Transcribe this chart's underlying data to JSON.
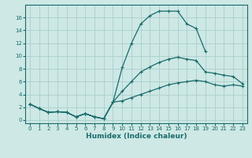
{
  "xlabel": "Humidex (Indice chaleur)",
  "background_color": "#cde8e5",
  "grid_color": "#aacfcc",
  "line_color": "#1a6b6b",
  "x_values": [
    0,
    1,
    2,
    3,
    4,
    5,
    6,
    7,
    8,
    9,
    10,
    11,
    12,
    13,
    14,
    15,
    16,
    17,
    18,
    19,
    20,
    21,
    22,
    23
  ],
  "line1": [
    2.5,
    1.8,
    1.2,
    1.3,
    1.2,
    0.5,
    1.0,
    0.5,
    0.2,
    2.8,
    8.2,
    12.0,
    15.0,
    16.3,
    17.0,
    17.0,
    17.0,
    15.0,
    14.3,
    10.7,
    null,
    null,
    null,
    null
  ],
  "line2": [
    2.5,
    1.8,
    1.2,
    1.3,
    1.2,
    0.5,
    1.0,
    0.5,
    0.2,
    2.8,
    4.5,
    6.0,
    7.5,
    8.3,
    9.0,
    9.5,
    9.8,
    9.5,
    9.3,
    7.5,
    7.3,
    7.0,
    6.8,
    5.7
  ],
  "line3": [
    2.5,
    1.8,
    1.2,
    1.3,
    1.2,
    0.5,
    1.0,
    0.5,
    0.2,
    2.8,
    3.0,
    3.5,
    4.0,
    4.5,
    5.0,
    5.5,
    5.8,
    6.0,
    6.2,
    6.0,
    5.5,
    5.3,
    5.5,
    5.3
  ],
  "ylim": [
    -0.5,
    18
  ],
  "xlim": [
    -0.5,
    23.5
  ],
  "yticks": [
    0,
    2,
    4,
    6,
    8,
    10,
    12,
    14,
    16
  ],
  "xticks": [
    0,
    1,
    2,
    3,
    4,
    5,
    6,
    7,
    8,
    9,
    10,
    11,
    12,
    13,
    14,
    15,
    16,
    17,
    18,
    19,
    20,
    21,
    22,
    23
  ],
  "xlabel_fontsize": 6.5,
  "tick_fontsize": 5.0,
  "linewidth": 0.9,
  "markersize": 3.5
}
